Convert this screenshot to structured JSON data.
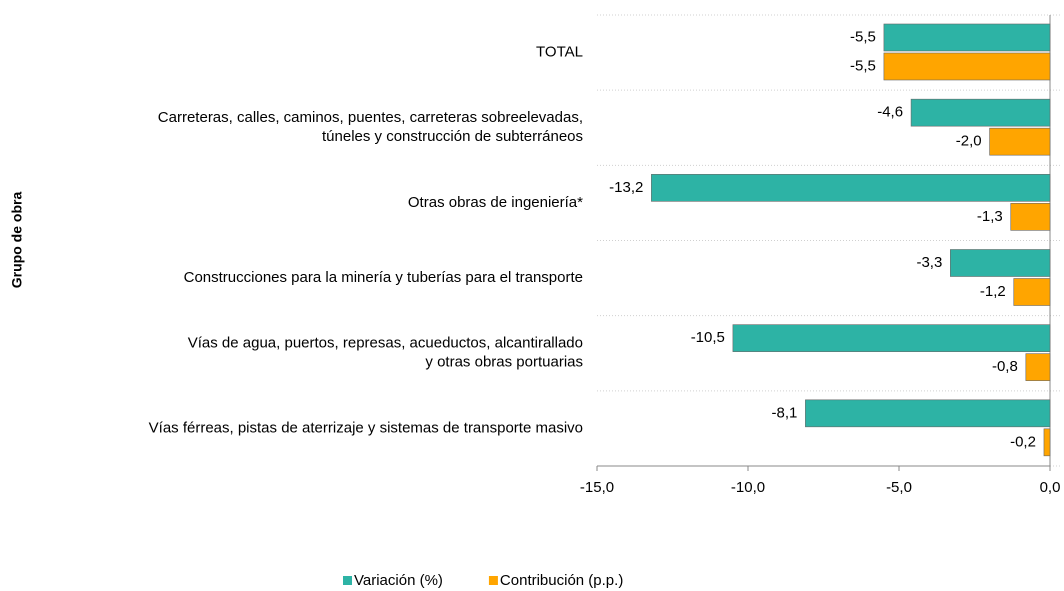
{
  "chart_data": {
    "type": "hbar",
    "y_label": "Grupo de obra",
    "categories": [
      [
        "TOTAL"
      ],
      [
        "Carreteras, calles, caminos, puentes, carreteras sobreelevadas,",
        "túneles y construcción de subterráneos"
      ],
      [
        "Otras obras de ingeniería*"
      ],
      [
        "Construcciones para la minería y tuberías para el transporte"
      ],
      [
        "Vías de agua, puertos, represas, acueductos, alcantirallado",
        "y otras obras portuarias"
      ],
      [
        "Vías férreas, pistas de aterrizaje y sistemas de transporte masivo"
      ]
    ],
    "series": [
      {
        "name": "Variación (%)",
        "color": "#2db3a5",
        "values": [
          -5.5,
          -4.6,
          -13.2,
          -3.3,
          -10.5,
          -8.1
        ],
        "value_labels": [
          "-5,5",
          "-4,6",
          "-13,2",
          "-3,3",
          "-10,5",
          "-8,1"
        ]
      },
      {
        "name": "Contribución (p.p.)",
        "color": "#ffa500",
        "values": [
          -5.5,
          -2.0,
          -1.3,
          -1.2,
          -0.8,
          -0.2
        ],
        "value_labels": [
          "-5,5",
          "-2,0",
          "-1,3",
          "-1,2",
          "-0,8",
          "-0,2"
        ]
      }
    ],
    "xlim": [
      -15,
      0
    ],
    "xticks": [
      {
        "value": -15,
        "label": "-15,0"
      },
      {
        "value": -10,
        "label": "-10,0"
      },
      {
        "value": -5,
        "label": "-5,0"
      },
      {
        "value": 0,
        "label": "0,0"
      }
    ]
  }
}
